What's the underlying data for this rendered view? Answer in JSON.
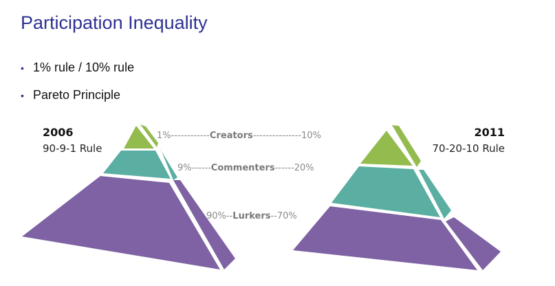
{
  "slide": {
    "title": "Participation Inequality",
    "bullets": [
      "1% rule / 10% rule",
      "Pareto Principle"
    ]
  },
  "left_pyramid": {
    "year": "2006",
    "rule": "90-9-1 Rule"
  },
  "right_pyramid": {
    "year": "2011",
    "rule": "70-20-10 Rule"
  },
  "connectors": {
    "creators": {
      "left": "1%------------",
      "label": "Creators",
      "right": "---------------10%"
    },
    "commenters": {
      "left": "9%------",
      "label": "Commenters",
      "right": "------20%"
    },
    "lurkers": {
      "left": "90%--",
      "label": "Lurkers",
      "right": "--70%"
    }
  },
  "colors": {
    "title": "#2e3192",
    "creators": "#94bb4e",
    "commenters": "#5aaea2",
    "lurkers": "#7e62a3"
  }
}
